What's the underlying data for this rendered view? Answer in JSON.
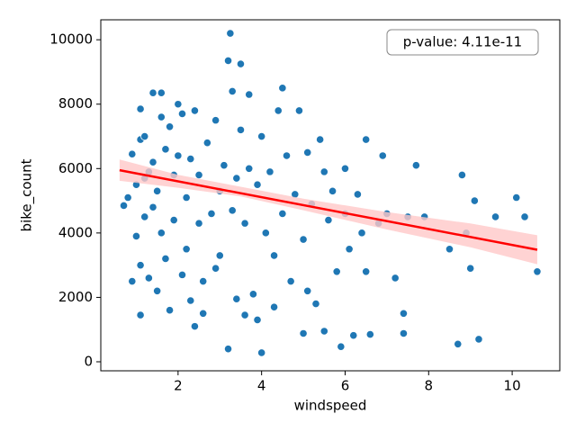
{
  "chart_data": {
    "type": "scatter",
    "x_label": "windspeed",
    "y_label": "bike_count",
    "annotation": "p-value: 4.11e-11",
    "color": "#1f77b4",
    "x": [
      0.7,
      0.8,
      0.9,
      0.9,
      1.0,
      1.0,
      1.1,
      1.1,
      1.1,
      1.1,
      1.2,
      1.2,
      1.2,
      1.3,
      1.3,
      1.4,
      1.4,
      1.4,
      1.5,
      1.5,
      1.6,
      1.6,
      1.6,
      1.7,
      1.7,
      1.8,
      1.8,
      1.9,
      1.9,
      2.0,
      2.0,
      2.1,
      2.1,
      2.2,
      2.2,
      2.3,
      2.3,
      2.4,
      2.4,
      2.5,
      2.5,
      2.6,
      2.6,
      2.7,
      2.8,
      2.9,
      2.9,
      3.0,
      3.0,
      3.1,
      3.2,
      3.2,
      3.25,
      3.3,
      3.3,
      3.4,
      3.4,
      3.5,
      3.5,
      3.6,
      3.6,
      3.7,
      3.7,
      3.8,
      3.9,
      3.9,
      4.0,
      4.0,
      4.1,
      4.2,
      4.3,
      4.3,
      4.4,
      4.5,
      4.5,
      4.6,
      4.7,
      4.8,
      4.9,
      5.0,
      5.0,
      5.1,
      5.1,
      5.2,
      5.3,
      5.4,
      5.5,
      5.5,
      5.6,
      5.7,
      5.8,
      5.9,
      6.0,
      6.0,
      6.1,
      6.2,
      6.3,
      6.4,
      6.5,
      6.5,
      6.6,
      6.8,
      6.9,
      7.0,
      7.2,
      7.4,
      7.4,
      7.5,
      7.7,
      7.9,
      8.5,
      8.7,
      8.8,
      8.9,
      9.0,
      9.1,
      9.2,
      9.6,
      10.1,
      10.3,
      10.6
    ],
    "values": [
      4850,
      5100,
      6450,
      2500,
      5500,
      3900,
      6900,
      7850,
      3000,
      1450,
      5700,
      4500,
      7000,
      2600,
      5900,
      8350,
      6200,
      4800,
      5300,
      2200,
      8350,
      7600,
      4000,
      6600,
      3200,
      1600,
      7300,
      5800,
      4400,
      8000,
      6400,
      2700,
      7700,
      5100,
      3500,
      6300,
      1900,
      1100,
      7800,
      4300,
      5800,
      2500,
      1500,
      6800,
      4600,
      2900,
      7500,
      5300,
      3300,
      6100,
      400,
      9350,
      10200,
      4700,
      8400,
      5700,
      1950,
      9250,
      7200,
      1450,
      4300,
      8300,
      6000,
      2100,
      1300,
      5500,
      280,
      7000,
      4000,
      5900,
      3300,
      1700,
      7800,
      8500,
      4600,
      6400,
      2500,
      5200,
      7800,
      3800,
      880,
      6500,
      2200,
      4900,
      1800,
      6900,
      950,
      5900,
      4400,
      5300,
      2800,
      470,
      6000,
      4600,
      3500,
      820,
      5200,
      4000,
      6900,
      2800,
      850,
      4300,
      6400,
      4600,
      2600,
      1500,
      880,
      4500,
      6100,
      4500,
      3500,
      550,
      5800,
      4000,
      2900,
      5000,
      700,
      4500,
      5100,
      4500,
      2800
    ],
    "regression": {
      "color": "#ff0000",
      "x": [
        0.6,
        10.6
      ],
      "y": [
        5950,
        3480
      ]
    },
    "ci_band": {
      "color": "#ffc8c8",
      "x": [
        0.6,
        2,
        3.5,
        5,
        7,
        9,
        10.6
      ],
      "lower": [
        5620,
        5405,
        5134,
        4706,
        4109,
        3555,
        3030
      ],
      "upper": [
        6280,
        5805,
        5434,
        5066,
        4649,
        4295,
        3930
      ]
    },
    "xlim": [
      0.15,
      11.14
    ],
    "ylim": [
      -280,
      10620
    ],
    "xticks": [
      2,
      4,
      6,
      8,
      10
    ],
    "yticks": [
      0,
      2000,
      4000,
      6000,
      8000,
      10000
    ]
  }
}
